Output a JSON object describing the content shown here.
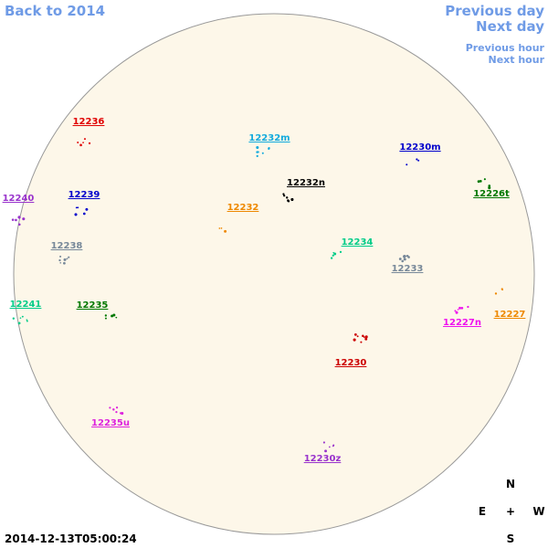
{
  "navigation": {
    "back": "Back to 2014",
    "previous_day": "Previous day",
    "next_day": "Next day",
    "previous_hour": "Previous hour",
    "next_hour": "Next hour"
  },
  "regions": [
    {
      "label": "12236",
      "color": "#e00000"
    },
    {
      "label": "12232m",
      "color": "#11aadd"
    },
    {
      "label": "12230m",
      "color": "#0000cc"
    },
    {
      "label": "12232n",
      "color": "#000000"
    },
    {
      "label": "12226t",
      "color": "#007700"
    },
    {
      "label": "12240",
      "color": "#9933cc"
    },
    {
      "label": "12239",
      "color": "#0000cc"
    },
    {
      "label": "12232",
      "color": "#ee8800"
    },
    {
      "label": "12234",
      "color": "#00cc88"
    },
    {
      "label": "12238",
      "color": "#778899"
    },
    {
      "label": "12233",
      "color": "#778899"
    },
    {
      "label": "12241",
      "color": "#00cc88"
    },
    {
      "label": "12235",
      "color": "#007700"
    },
    {
      "label": "12227",
      "color": "#ee8800"
    },
    {
      "label": "12227n",
      "color": "#ee11ee"
    },
    {
      "label": "12230",
      "color": "#cc0000"
    },
    {
      "label": "12235u",
      "color": "#dd22dd"
    },
    {
      "label": "12230z",
      "color": "#9933cc"
    }
  ],
  "timestamp": "2014-12-13T05:00:24",
  "compass": {
    "north": "N",
    "east": "E",
    "center": "+",
    "west": "W",
    "south": "S"
  }
}
